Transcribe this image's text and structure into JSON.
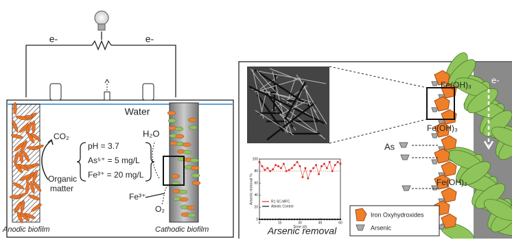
{
  "circuit": {
    "electron_left": "e-",
    "electron_right": "e-"
  },
  "reactor": {
    "water": "Water",
    "co2": "CO₂",
    "organic_matter": [
      "Organic",
      "matter"
    ],
    "conditions": [
      "pH = 3.7",
      "As⁵⁺ = 5 mg/L",
      "Fe³⁺ = 20 mg/L"
    ],
    "h2o": "H₂O",
    "fe3": "Fe³⁺",
    "o2": "O₂",
    "anode_label": "Anodic biofilm",
    "cathode_label": "Cathodic biofilm"
  },
  "zoom": {
    "fe_oh3": [
      "Fe(OH)₃",
      "Fe(OH)₃",
      "Fe(OH)₃"
    ],
    "electron": "e-",
    "arsenic": "As",
    "legend": [
      "Iron Oxyhydroxides",
      "Arsenic"
    ],
    "caption": "Arsenic removal"
  },
  "inset_chart": {
    "type": "line",
    "x_label": "Time (d)",
    "y_label": "Arsenic removal %",
    "xlim": [
      0,
      60
    ],
    "ylim": [
      0,
      100
    ],
    "xticks": [
      0,
      15,
      30,
      45,
      60
    ],
    "yticks": [
      0,
      20,
      40,
      60,
      80,
      100
    ],
    "x": [
      0,
      2,
      4,
      6,
      8,
      10,
      12,
      14,
      16,
      18,
      20,
      22,
      24,
      26,
      28,
      30,
      32,
      34,
      36,
      38,
      40,
      42,
      44,
      46,
      48,
      50,
      52,
      54,
      56,
      58,
      60
    ],
    "series": [
      {
        "name": "R1 SC-MFC",
        "color": "#d9342b",
        "values": [
          95,
          88,
          82,
          85,
          80,
          83,
          90,
          88,
          85,
          92,
          80,
          82,
          85,
          90,
          95,
          88,
          70,
          85,
          68,
          80,
          85,
          90,
          75,
          88,
          92,
          85,
          95,
          80,
          90,
          95,
          92
        ]
      },
      {
        "name": "Abiotic Control",
        "color": "#111111",
        "values": [
          0,
          0,
          0,
          0,
          0,
          0,
          0,
          0,
          0,
          0,
          0,
          0,
          0,
          0,
          0,
          0,
          0,
          0,
          0,
          0,
          0,
          0,
          0,
          0,
          0,
          0,
          0,
          0,
          0,
          0,
          0
        ]
      }
    ]
  }
}
